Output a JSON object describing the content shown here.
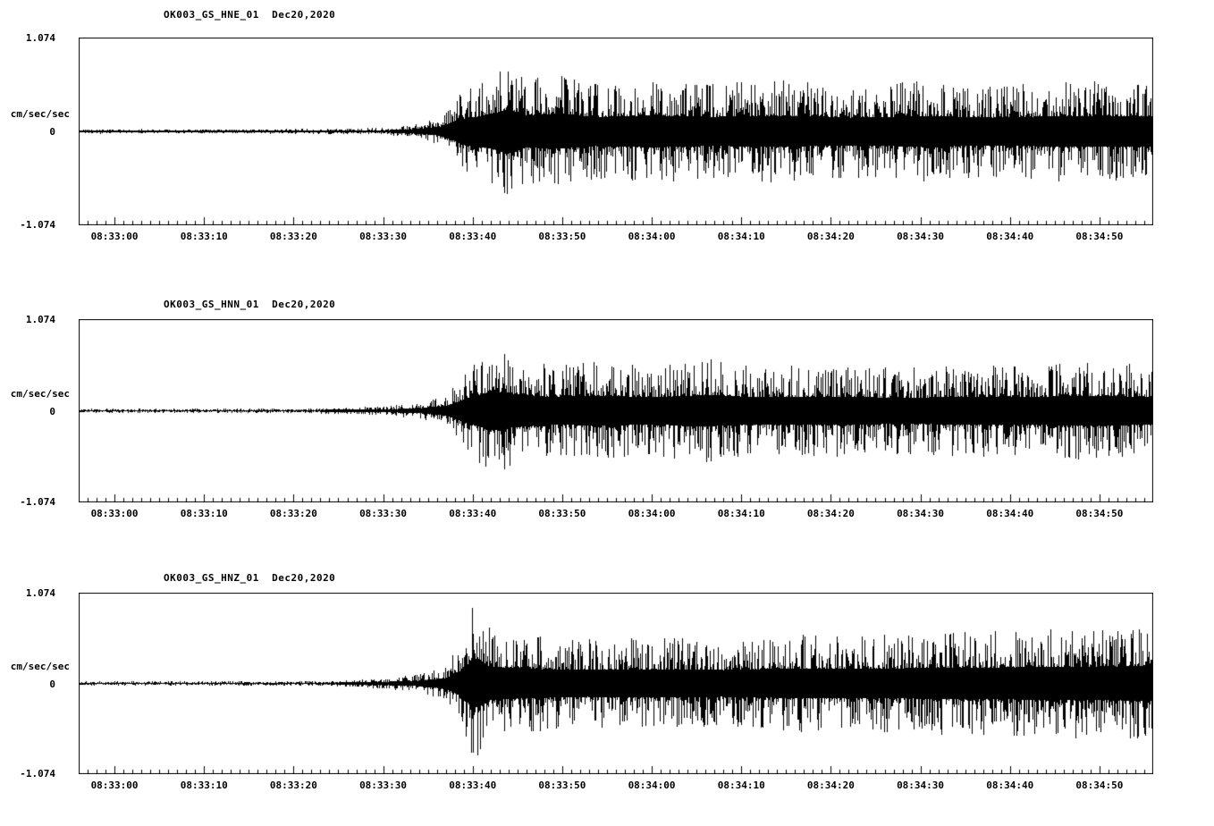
{
  "chart_data": [
    {
      "type": "line",
      "title": "OK003_GS_HNE_01  Dec20,2020",
      "station_channel": "OK003_GS_HNE_01",
      "date": "Dec20,2020",
      "ylabel": "cm/sec/sec",
      "y_ticks": [
        "1.074",
        "0",
        "-1.074"
      ],
      "ylim": [
        -1.074,
        1.074
      ],
      "x_ticks": [
        "08:33:00",
        "08:33:10",
        "08:33:20",
        "08:33:30",
        "08:33:40",
        "08:33:50",
        "08:34:00",
        "08:34:10",
        "08:34:20",
        "08:34:30",
        "08:34:40",
        "08:34:50"
      ],
      "x_range_seconds": 120,
      "x_first_tick_offset_seconds": 4,
      "x_major_tick_interval_seconds": 10,
      "x_minor_tick_interval_seconds": 1,
      "grid": false,
      "line_color": "#000000",
      "seed": 101,
      "envelope": [
        [
          0,
          0.025
        ],
        [
          20,
          0.025
        ],
        [
          30,
          0.03
        ],
        [
          34,
          0.04
        ],
        [
          37,
          0.07
        ],
        [
          40,
          0.14
        ],
        [
          43,
          0.45
        ],
        [
          46,
          0.62
        ],
        [
          48,
          0.8
        ],
        [
          50,
          0.58
        ],
        [
          54,
          0.62
        ],
        [
          58,
          0.52
        ],
        [
          64,
          0.58
        ],
        [
          70,
          0.52
        ],
        [
          78,
          0.56
        ],
        [
          86,
          0.5
        ],
        [
          94,
          0.55
        ],
        [
          102,
          0.5
        ],
        [
          110,
          0.55
        ],
        [
          120,
          0.55
        ]
      ]
    },
    {
      "type": "line",
      "title": "OK003_GS_HNN_01  Dec20,2020",
      "station_channel": "OK003_GS_HNN_01",
      "date": "Dec20,2020",
      "ylabel": "cm/sec/sec",
      "y_ticks": [
        "1.074",
        "0",
        "-1.074"
      ],
      "ylim": [
        -1.074,
        1.074
      ],
      "x_ticks": [
        "08:33:00",
        "08:33:10",
        "08:33:20",
        "08:33:30",
        "08:33:40",
        "08:33:50",
        "08:34:00",
        "08:34:10",
        "08:34:20",
        "08:34:30",
        "08:34:40",
        "08:34:50"
      ],
      "x_range_seconds": 120,
      "x_first_tick_offset_seconds": 4,
      "x_major_tick_interval_seconds": 10,
      "x_minor_tick_interval_seconds": 1,
      "grid": false,
      "line_color": "#000000",
      "seed": 202,
      "envelope": [
        [
          0,
          0.022
        ],
        [
          22,
          0.025
        ],
        [
          30,
          0.035
        ],
        [
          34,
          0.05
        ],
        [
          38,
          0.09
        ],
        [
          41,
          0.18
        ],
        [
          44,
          0.52
        ],
        [
          46,
          0.72
        ],
        [
          49,
          0.6
        ],
        [
          53,
          0.5
        ],
        [
          58,
          0.56
        ],
        [
          64,
          0.5
        ],
        [
          70,
          0.58
        ],
        [
          76,
          0.5
        ],
        [
          84,
          0.52
        ],
        [
          92,
          0.48
        ],
        [
          100,
          0.52
        ],
        [
          108,
          0.52
        ],
        [
          114,
          0.56
        ],
        [
          120,
          0.5
        ]
      ]
    },
    {
      "type": "line",
      "title": "OK003_GS_HNZ_01  Dec20,2020",
      "station_channel": "OK003_GS_HNZ_01",
      "date": "Dec20,2020",
      "ylabel": "cm/sec/sec",
      "y_ticks": [
        "1.074",
        "0",
        "-1.074"
      ],
      "ylim": [
        -1.074,
        1.074
      ],
      "x_ticks": [
        "08:33:00",
        "08:33:10",
        "08:33:20",
        "08:33:30",
        "08:33:40",
        "08:33:50",
        "08:34:00",
        "08:34:10",
        "08:34:20",
        "08:34:30",
        "08:34:40",
        "08:34:50"
      ],
      "x_range_seconds": 120,
      "x_first_tick_offset_seconds": 4,
      "x_major_tick_interval_seconds": 10,
      "x_minor_tick_interval_seconds": 1,
      "grid": false,
      "line_color": "#000000",
      "seed": 303,
      "envelope": [
        [
          0,
          0.022
        ],
        [
          24,
          0.026
        ],
        [
          30,
          0.035
        ],
        [
          34,
          0.06
        ],
        [
          38,
          0.1
        ],
        [
          41,
          0.2
        ],
        [
          43,
          0.55
        ],
        [
          44,
          0.95
        ],
        [
          46,
          0.62
        ],
        [
          50,
          0.55
        ],
        [
          56,
          0.5
        ],
        [
          64,
          0.52
        ],
        [
          72,
          0.5
        ],
        [
          80,
          0.55
        ],
        [
          88,
          0.55
        ],
        [
          96,
          0.58
        ],
        [
          104,
          0.6
        ],
        [
          112,
          0.62
        ],
        [
          120,
          0.65
        ]
      ]
    }
  ]
}
